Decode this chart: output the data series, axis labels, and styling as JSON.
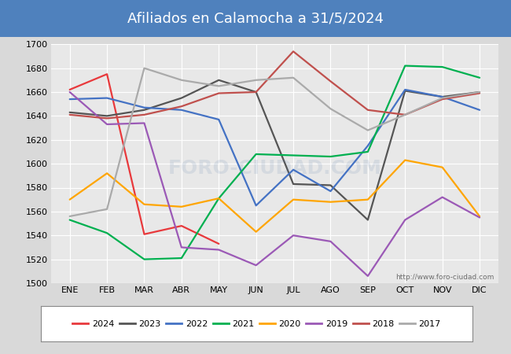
{
  "title": "Afiliados en Calamocha a 31/5/2024",
  "title_bg_color": "#4f81bd",
  "title_text_color": "white",
  "ylim": [
    1500,
    1700
  ],
  "yticks": [
    1500,
    1520,
    1540,
    1560,
    1580,
    1600,
    1620,
    1640,
    1660,
    1680,
    1700
  ],
  "months": [
    "ENE",
    "FEB",
    "MAR",
    "ABR",
    "MAY",
    "JUN",
    "JUL",
    "AGO",
    "SEP",
    "OCT",
    "NOV",
    "DIC"
  ],
  "watermark": "http://www.foro-ciudad.com",
  "series": {
    "2024": {
      "color": "#e8393c",
      "data": [
        1662,
        1675,
        1541,
        1548,
        1533,
        null,
        null,
        null,
        null,
        null,
        null,
        null
      ]
    },
    "2023": {
      "color": "#555555",
      "data": [
        1643,
        1640,
        1645,
        1655,
        1670,
        1660,
        1583,
        1582,
        1553,
        1661,
        1656,
        1660
      ]
    },
    "2022": {
      "color": "#4472c4",
      "data": [
        1654,
        1655,
        1647,
        1645,
        1637,
        1565,
        1595,
        1577,
        1615,
        1662,
        1656,
        1645
      ]
    },
    "2021": {
      "color": "#00b050",
      "data": [
        1553,
        1542,
        1520,
        1521,
        1571,
        1608,
        1607,
        1606,
        1610,
        1682,
        1681,
        1672
      ]
    },
    "2020": {
      "color": "#ffa500",
      "data": [
        1570,
        1592,
        1566,
        1564,
        1571,
        1543,
        1570,
        1568,
        1570,
        1603,
        1597,
        1556
      ]
    },
    "2019": {
      "color": "#9b59b6",
      "data": [
        1660,
        1633,
        1634,
        1530,
        1528,
        1515,
        1540,
        1535,
        1506,
        1553,
        1572,
        1555
      ]
    },
    "2018": {
      "color": "#c0504d",
      "data": [
        1641,
        1638,
        1641,
        1648,
        1659,
        1660,
        1694,
        1669,
        1645,
        1641,
        1654,
        1659
      ]
    },
    "2017": {
      "color": "#aaaaaa",
      "data": [
        1556,
        1562,
        1680,
        1670,
        1665,
        1670,
        1672,
        1646,
        1628,
        1641,
        1655,
        1660
      ]
    }
  },
  "legend_order": [
    "2024",
    "2023",
    "2022",
    "2021",
    "2020",
    "2019",
    "2018",
    "2017"
  ],
  "bg_color": "#d9d9d9",
  "plot_bg_color": "#e8e8e8",
  "grid_color": "white"
}
